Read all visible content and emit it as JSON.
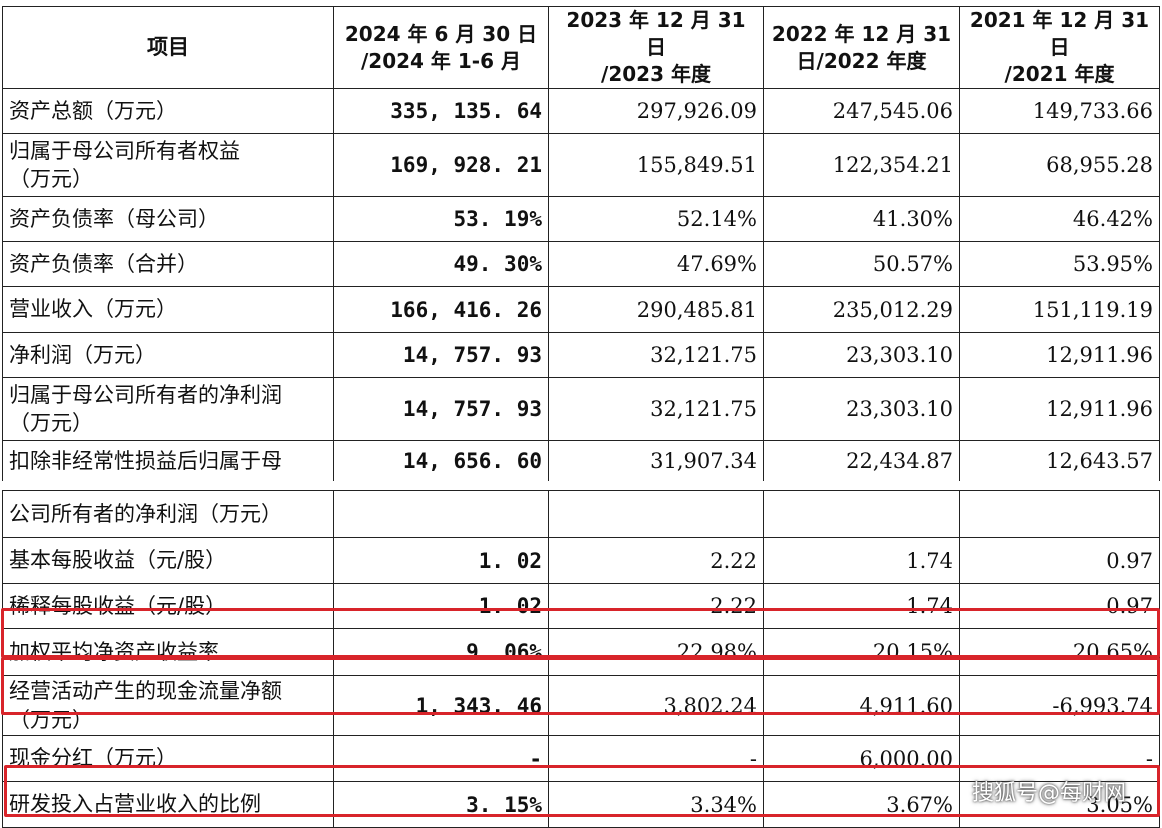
{
  "header": [
    "项目",
    "2024 年 6 月 30 日 /2024 年 1-6 月",
    "2023 年 12 月 31 日 /2023 年度",
    "2022 年 12 月 31 日/2022 年度",
    "2021 年 12 月 31 日 /2021 年度"
  ],
  "header_lines": [
    [
      "项目",
      ""
    ],
    [
      "2024 年 6 月 30 日",
      "/2024 年 1-6 月"
    ],
    [
      "2023 年 12 月 31 日",
      "/2023 年度"
    ],
    [
      "2022 年 12 月 31",
      "日/2022 年度"
    ],
    [
      "2021 年 12 月 31 日",
      "/2021 年度"
    ]
  ],
  "rows": [
    {
      "label": "资产总额（万元）",
      "values": [
        "335, 135. 64",
        "297,926.09",
        "247,545.06",
        "149,733.66"
      ]
    },
    {
      "label": "归属于母公司所有者权益（万元）",
      "values": [
        "169, 928. 21",
        "155,849.51",
        "122,354.21",
        "68,955.28"
      ]
    },
    {
      "label": "资产负债率（母公司）",
      "values": [
        "53. 19%",
        "52.14%",
        "41.30%",
        "46.42%"
      ]
    },
    {
      "label": "资产负债率（合并）",
      "values": [
        "49. 30%",
        "47.69%",
        "50.57%",
        "53.95%"
      ]
    },
    {
      "label": "营业收入（万元）",
      "values": [
        "166, 416. 26",
        "290,485.81",
        "235,012.29",
        "151,119.19"
      ]
    },
    {
      "label": "净利润（万元）",
      "values": [
        "14, 757. 93",
        "32,121.75",
        "23,303.10",
        "12,911.96"
      ]
    },
    {
      "label": "归属于母公司所有者的净利润（万元）",
      "values": [
        "14, 757. 93",
        "32,121.75",
        "23,303.10",
        "12,911.96"
      ]
    },
    {
      "label": "扣除非经常性损益后归属于母",
      "values": [
        "14, 656. 60",
        "31,907.34",
        "22,434.87",
        "12,643.57"
      ]
    },
    {
      "label": "公司所有者的净利润（万元）",
      "values": [
        "",
        "",
        "",
        ""
      ]
    },
    {
      "label": "基本每股收益（元/股）",
      "values": [
        "1. 02",
        "2.22",
        "1.74",
        "0.97"
      ]
    },
    {
      "label": "稀释每股收益（元/股）",
      "values": [
        "1. 02",
        "2.22",
        "1.74",
        "0.97"
      ]
    },
    {
      "label": "加权平均净资产收益率",
      "values": [
        "9. 06%",
        "22.98%",
        "20.15%",
        "20.65%"
      ]
    },
    {
      "label": "经营活动产生的现金流量净额（万元）",
      "values": [
        "1, 343. 46",
        "3,802.24",
        "4,911.60",
        "-6,993.74"
      ]
    },
    {
      "label": "现金分红（万元）",
      "values": [
        "-",
        "-",
        "6,000.00",
        "-"
      ]
    },
    {
      "label": "研发投入占营业收入的比例",
      "values": [
        "3. 15%",
        "3.34%",
        "3.67%",
        "3.05%"
      ]
    }
  ],
  "label_lines": {
    "1": [
      "归属于母公司所有者权益",
      "（万元）"
    ],
    "6": [
      "归属于母公司所有者的净利润",
      "（万元）"
    ],
    "12": [
      "经营活动产生的现金流量净额",
      "（万元）"
    ]
  },
  "watermark": "搜狐号@每财网",
  "highlight_color": "#d8242a"
}
